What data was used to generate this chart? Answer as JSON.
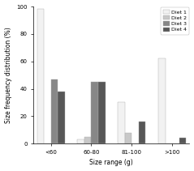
{
  "categories": [
    "<60",
    "60-80",
    "81-100",
    ">100"
  ],
  "diets": [
    "Diet 1",
    "Diet 2",
    "Diet 3",
    "Diet 4"
  ],
  "values": [
    [
      98,
      3,
      30,
      62
    ],
    [
      0,
      5,
      8,
      0
    ],
    [
      47,
      45,
      0,
      0
    ],
    [
      38,
      45,
      16,
      4
    ]
  ],
  "colors": [
    "#f2f2f2",
    "#c8c8c8",
    "#878787",
    "#575757"
  ],
  "xlabel": "Size range (g)",
  "ylabel": "Size frequency distribution (%)",
  "ylim": [
    0,
    100
  ],
  "yticks": [
    0,
    20,
    40,
    60,
    80,
    100
  ],
  "axis_fontsize": 5.5,
  "tick_fontsize": 5,
  "legend_fontsize": 4.5,
  "bar_width": 0.12,
  "group_positions": [
    0.25,
    0.95,
    1.65,
    2.35
  ],
  "bar_edge_color": "#aaaaaa",
  "bar_edge_width": 0.3
}
